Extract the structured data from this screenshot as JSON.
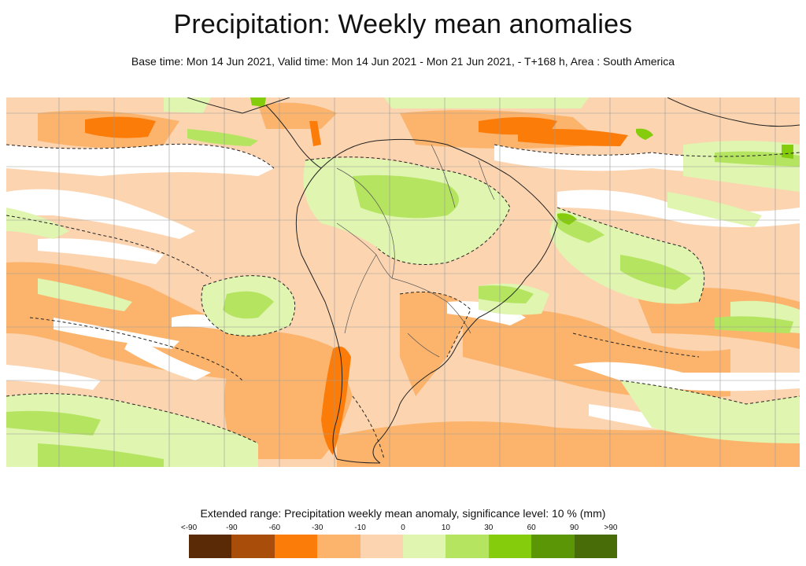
{
  "header": {
    "title": "Precipitation: Weekly mean anomalies",
    "subtitle": "Base time: Mon 14 Jun 2021, Valid time: Mon 14 Jun 2021 - Mon 21 Jun 2021, - T+168 h, Area : South America"
  },
  "map": {
    "area": "South America",
    "features": [
      "precipitation-anomaly-field",
      "significance-contours-dashed",
      "coastlines",
      "country-borders",
      "lat-lon-grid"
    ]
  },
  "legend": {
    "title": "Extended range: Precipitation weekly mean anomaly, significance level: 10 % (mm)",
    "ticks": [
      "<-90",
      "-90",
      "-60",
      "-30",
      "-10",
      "0",
      "10",
      "30",
      "60",
      "90",
      ">90"
    ],
    "colors": [
      "#5a2a06",
      "#a84d0a",
      "#fc7c0a",
      "#fcb46c",
      "#fcd4b0",
      "#dff5b0",
      "#b4e460",
      "#84cc0c",
      "#5a9606",
      "#486c08"
    ]
  }
}
